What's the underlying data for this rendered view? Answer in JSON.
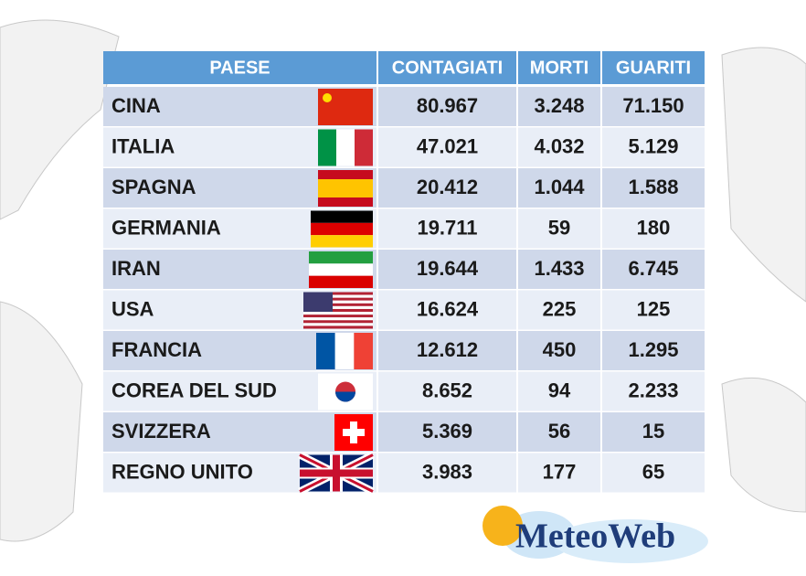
{
  "table": {
    "header": [
      "PAESE",
      "CONTAGIATI",
      "MORTI",
      "GUARITI"
    ],
    "rows": [
      [
        "CINA",
        "80.967",
        "3.248",
        "71.150"
      ],
      [
        "ITALIA",
        "47.021",
        "4.032",
        "5.129"
      ],
      [
        "SPAGNA",
        "20.412",
        "1.044",
        "1.588"
      ],
      [
        "GERMANIA",
        "19.711",
        "59",
        "180"
      ],
      [
        "IRAN",
        "19.644",
        "1.433",
        "6.745"
      ],
      [
        "USA",
        "16.624",
        "225",
        "125"
      ],
      [
        "FRANCIA",
        "12.612",
        "450",
        "1.295"
      ],
      [
        "COREA DEL SUD",
        "8.652",
        "94",
        "2.233"
      ],
      [
        "SVIZZERA",
        "5.369",
        "56",
        "15"
      ],
      [
        "REGNO UNITO",
        "3.983",
        "177",
        "65"
      ]
    ]
  },
  "logo": "MeteoWeb"
}
